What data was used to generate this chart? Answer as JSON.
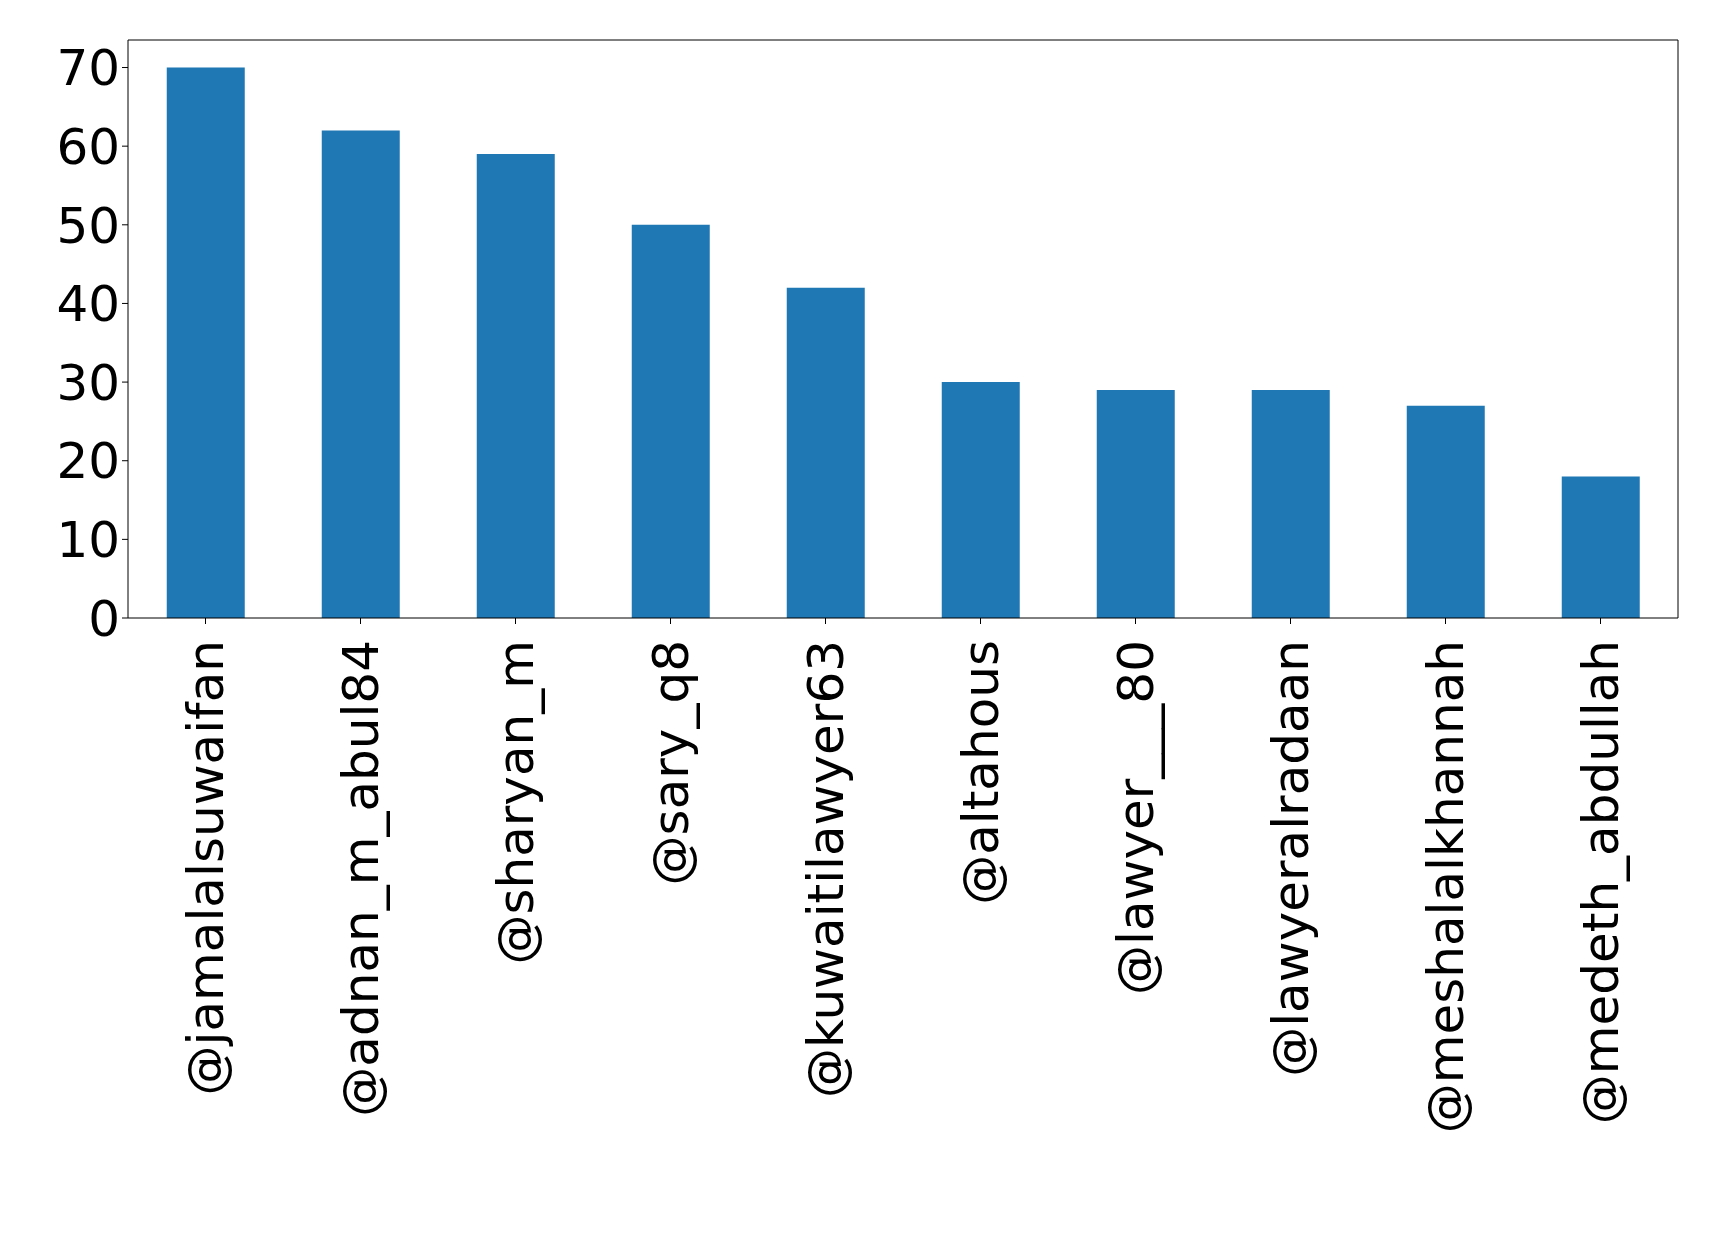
{
  "chart_data": {
    "type": "bar",
    "categories": [
      "@jamalalsuwaifan",
      "@adnan_m_abul84",
      "@sharyan_m",
      "@sary_q8",
      "@kuwaitilawyer63",
      "@altahous",
      "@lawyer___80",
      "@lawyeralradaan",
      "@meshalalkhannah",
      "@medeth_abdullah"
    ],
    "values": [
      70,
      62,
      59,
      50,
      42,
      30,
      29,
      29,
      27,
      18
    ],
    "color": "#1f77b4",
    "ylim": [
      0,
      73.5
    ],
    "yticks": [
      0,
      10,
      20,
      30,
      40,
      50,
      60,
      70
    ],
    "grid": false,
    "legend": false
  }
}
